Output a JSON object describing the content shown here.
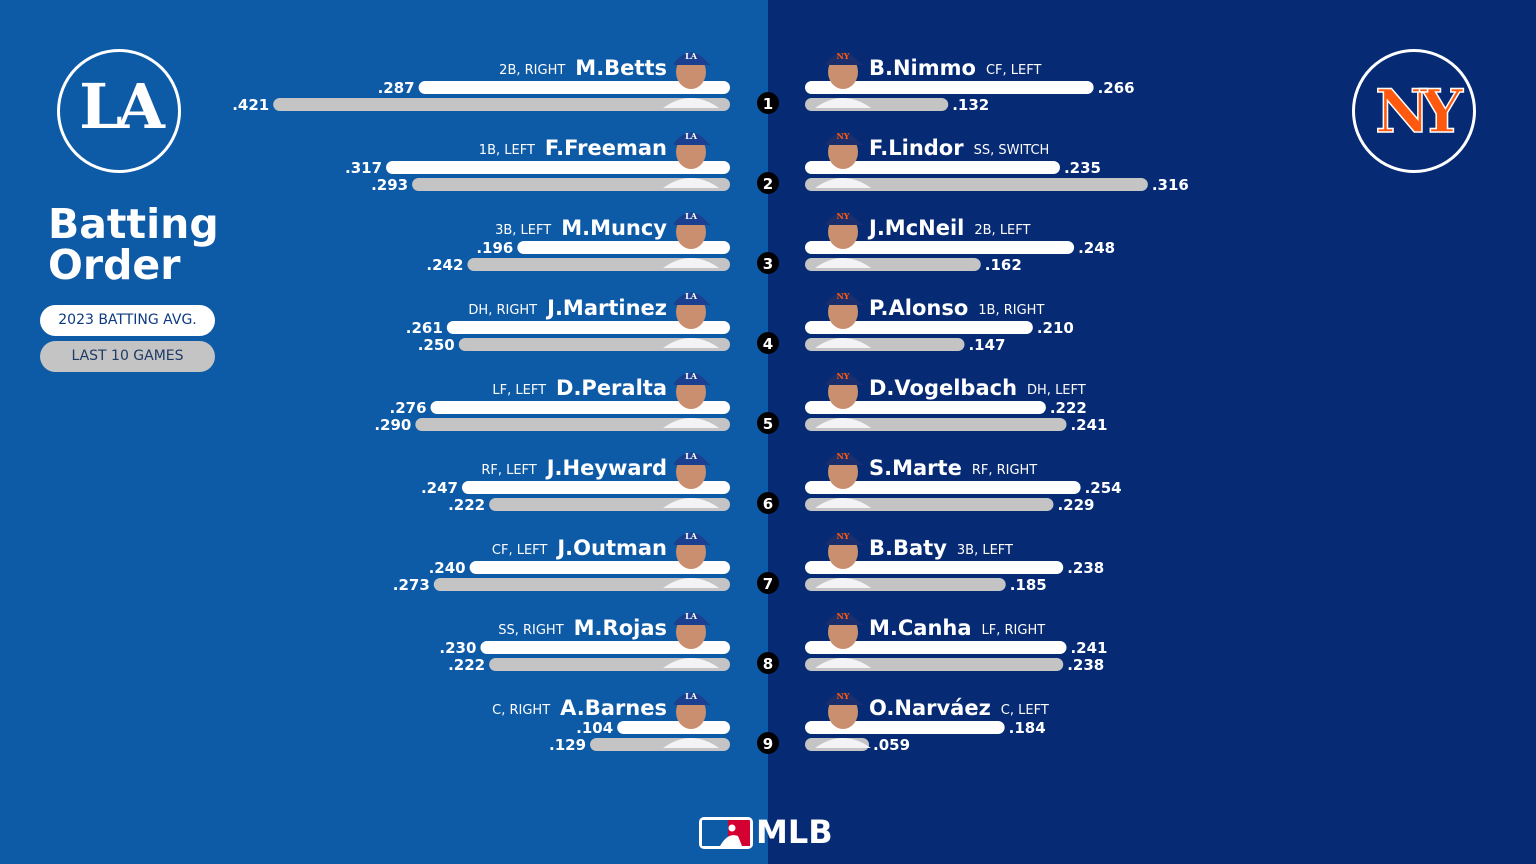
{
  "title": "Batting Order",
  "legend": {
    "season_label": "2023 BATTING AVG.",
    "recent_label": "LAST 10 GAMES"
  },
  "footer": {
    "brand": "MLB"
  },
  "colors": {
    "dodgers_blue": "#0d5aa7",
    "mets_navy": "#062a73",
    "mets_orange": "#ff5910",
    "season_bar": "#ffffff",
    "recent_bar": "#c4c4c4"
  },
  "teams": {
    "away": {
      "logo_icon": "dodgers-la-logo",
      "logo_text": "LA"
    },
    "home": {
      "logo_icon": "mets-ny-logo",
      "logo_text": "NY"
    }
  },
  "chart_data": {
    "type": "bar",
    "title": "Batting Order",
    "categories": [
      "1",
      "2",
      "3",
      "4",
      "5",
      "6",
      "7",
      "8",
      "9"
    ],
    "xlim": [
      0,
      0.421
    ],
    "series": [
      {
        "name": "2023 BATTING AVG.",
        "team": "left",
        "values": [
          0.287,
          0.317,
          0.196,
          0.261,
          0.276,
          0.247,
          0.24,
          0.23,
          0.104
        ],
        "labels": [
          ".287",
          ".317",
          ".196",
          ".261",
          ".276",
          ".247",
          ".240",
          ".230",
          ".104"
        ]
      },
      {
        "name": "LAST 10 GAMES",
        "team": "left",
        "values": [
          0.421,
          0.293,
          0.242,
          0.25,
          0.29,
          0.222,
          0.273,
          0.222,
          0.129
        ],
        "labels": [
          ".421",
          ".293",
          ".242",
          ".250",
          ".290",
          ".222",
          ".273",
          ".222",
          ".129"
        ]
      },
      {
        "name": "2023 BATTING AVG.",
        "team": "right",
        "values": [
          0.266,
          0.235,
          0.248,
          0.21,
          0.222,
          0.254,
          0.238,
          0.241,
          0.184
        ],
        "labels": [
          ".266",
          ".235",
          ".248",
          ".210",
          ".222",
          ".254",
          ".238",
          ".241",
          ".184"
        ]
      },
      {
        "name": "LAST 10 GAMES",
        "team": "right",
        "values": [
          0.132,
          0.316,
          0.162,
          0.147,
          0.241,
          0.229,
          0.185,
          0.238,
          0.059
        ],
        "labels": [
          ".132",
          ".316",
          ".162",
          ".147",
          ".241",
          ".229",
          ".185",
          ".238",
          ".059"
        ]
      }
    ],
    "left_players": [
      {
        "name": "M.Betts",
        "pos": "2B, RIGHT"
      },
      {
        "name": "F.Freeman",
        "pos": "1B, LEFT"
      },
      {
        "name": "M.Muncy",
        "pos": "3B, LEFT"
      },
      {
        "name": "J.Martinez",
        "pos": "DH, RIGHT"
      },
      {
        "name": "D.Peralta",
        "pos": "LF, LEFT"
      },
      {
        "name": "J.Heyward",
        "pos": "RF, LEFT"
      },
      {
        "name": "J.Outman",
        "pos": "CF, LEFT"
      },
      {
        "name": "M.Rojas",
        "pos": "SS, RIGHT"
      },
      {
        "name": "A.Barnes",
        "pos": "C, RIGHT"
      }
    ],
    "right_players": [
      {
        "name": "B.Nimmo",
        "pos": "CF, LEFT"
      },
      {
        "name": "F.Lindor",
        "pos": "SS, SWITCH"
      },
      {
        "name": "J.McNeil",
        "pos": "2B, LEFT"
      },
      {
        "name": "P.Alonso",
        "pos": "1B, RIGHT"
      },
      {
        "name": "D.Vogelbach",
        "pos": "DH, LEFT"
      },
      {
        "name": "S.Marte",
        "pos": "RF, RIGHT"
      },
      {
        "name": "B.Baty",
        "pos": "3B, LEFT"
      },
      {
        "name": "M.Canha",
        "pos": "LF, RIGHT"
      },
      {
        "name": "O.Narváez",
        "pos": "C, LEFT"
      }
    ]
  }
}
